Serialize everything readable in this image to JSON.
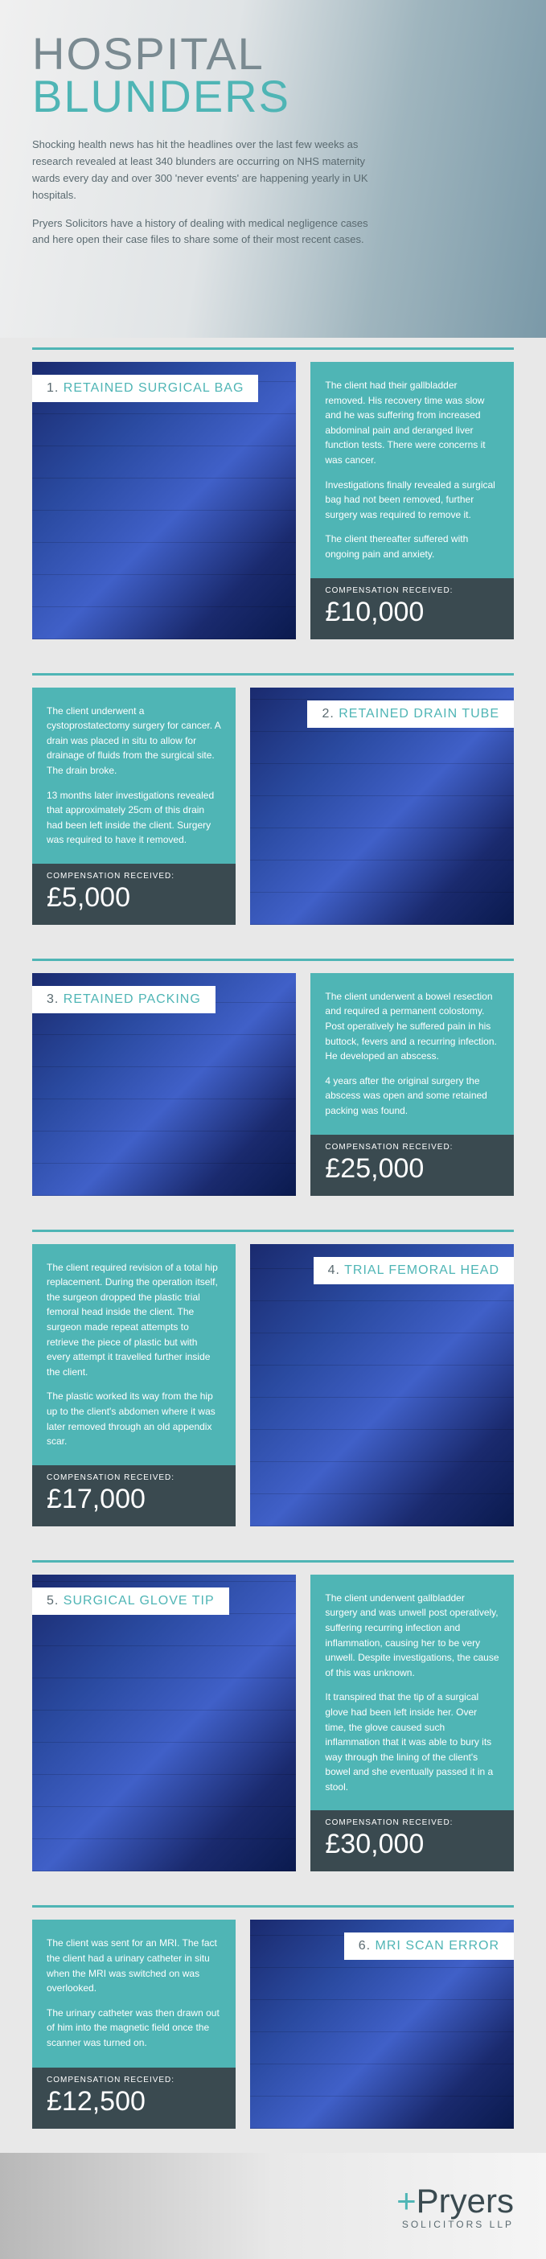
{
  "hero": {
    "title_line1": "HOSPITAL",
    "title_line2": "BLUNDERS",
    "para1": "Shocking health news has hit the headlines over the last few weeks as research revealed at least 340 blunders are occurring on NHS maternity wards every day and over 300 'never events' are happening yearly in UK hospitals.",
    "para2": "Pryers Solicitors have a history of dealing with medical negligence cases and here open their case files to share some of their most recent cases."
  },
  "comp_label": "COMPENSATION RECEIVED:",
  "cases": [
    {
      "num": "1.",
      "title": "RETAINED SURGICAL BAG",
      "side": "left",
      "paras": [
        "The client had their gallbladder removed. His recovery time was slow and he was suffering from increased abdominal pain and deranged liver function tests. There were concerns it was cancer.",
        "Investigations finally revealed a surgical bag had not been removed, further surgery was required to remove it.",
        "The client thereafter suffered with ongoing pain and anxiety."
      ],
      "amount": "£10,000"
    },
    {
      "num": "2.",
      "title": "RETAINED DRAIN TUBE",
      "side": "right",
      "paras": [
        "The client underwent a cystoprostatectomy surgery for cancer. A drain was placed in situ to allow for drainage of fluids from the surgical site. The drain broke.",
        "13 months later investigations revealed that approximately 25cm of this drain had been left inside the client. Surgery was required to have it removed."
      ],
      "amount": "£5,000"
    },
    {
      "num": "3.",
      "title": "RETAINED PACKING",
      "side": "left",
      "paras": [
        "The client underwent a bowel resection and required a permanent colostomy. Post operatively he suffered pain in his buttock, fevers and a recurring infection. He developed an abscess.",
        "4 years after the original surgery the abscess was open and some retained packing was found."
      ],
      "amount": "£25,000"
    },
    {
      "num": "4.",
      "title": "TRIAL FEMORAL HEAD",
      "side": "right",
      "paras": [
        "The client required revision of a total hip replacement. During the operation itself, the surgeon dropped the plastic trial femoral head inside the client. The surgeon made repeat attempts to retrieve the piece of plastic but with every attempt it travelled further inside the client.",
        "The plastic worked its way from the hip up to the client's abdomen where it was later removed through an old appendix scar."
      ],
      "amount": "£17,000"
    },
    {
      "num": "5.",
      "title": "SURGICAL GLOVE TIP",
      "side": "left",
      "paras": [
        "The client underwent gallbladder surgery and was unwell post operatively, suffering recurring infection and inflammation, causing her to be very unwell. Despite investigations, the cause of this was unknown.",
        "It transpired that the tip of a surgical glove had been left inside her. Over time, the glove caused such inflammation that it was able to bury its way through the lining of the client's bowel and she eventually passed it in a stool."
      ],
      "amount": "£30,000"
    },
    {
      "num": "6.",
      "title": "MRI SCAN ERROR",
      "side": "right",
      "paras": [
        "The client was sent for an MRI. The fact the client had a urinary catheter in situ when the MRI was switched on was overlooked.",
        "The urinary catheter was then drawn out of him into the magnetic field once the scanner was turned on."
      ],
      "amount": "£12,500"
    }
  ],
  "footer": {
    "brand_plus": "+",
    "brand_name": "Pryers",
    "sub": "SOLICITORS LLP"
  }
}
